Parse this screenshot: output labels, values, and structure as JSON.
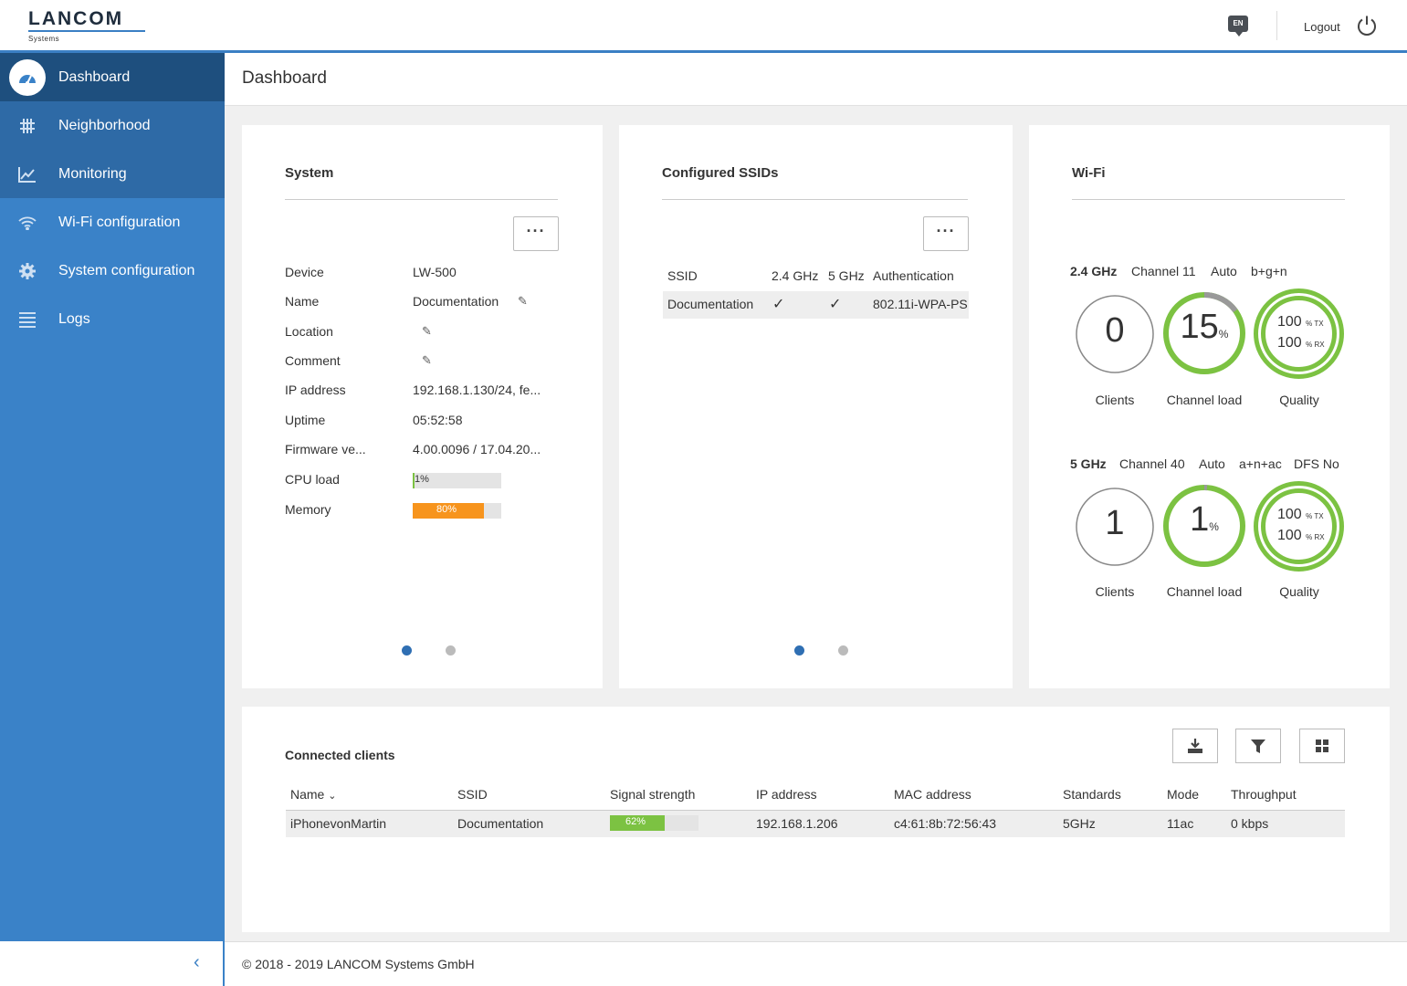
{
  "brand": {
    "name": "LANCOM",
    "sub": "Systems"
  },
  "header": {
    "lang": "EN",
    "logout": "Logout"
  },
  "nav": [
    {
      "label": "Dashboard",
      "icon": "speedometer-icon"
    },
    {
      "label": "Neighborhood",
      "icon": "grid-hash-icon"
    },
    {
      "label": "Monitoring",
      "icon": "line-chart-icon"
    },
    {
      "label": "Wi-Fi configuration",
      "icon": "wifi-icon"
    },
    {
      "label": "System configuration",
      "icon": "gear-icon"
    },
    {
      "label": "Logs",
      "icon": "list-icon"
    }
  ],
  "page": {
    "title": "Dashboard"
  },
  "system": {
    "title": "System",
    "rows": [
      {
        "label": "Device",
        "value": "LW-500"
      },
      {
        "label": "Name",
        "value": "Documentation"
      },
      {
        "label": "Location",
        "value": ""
      },
      {
        "label": "Comment",
        "value": ""
      },
      {
        "label": "IP address",
        "value": "192.168.1.130/24, fe..."
      },
      {
        "label": "Uptime",
        "value": "05:52:58"
      },
      {
        "label": "Firmware ve...",
        "value": "4.00.0096 / 17.04.20..."
      },
      {
        "label": "CPU load",
        "value": ""
      },
      {
        "label": "Memory",
        "value": ""
      }
    ],
    "cpu": {
      "percent": 1,
      "label": "1%"
    },
    "memory": {
      "percent": 80,
      "label": "80%"
    }
  },
  "ssids": {
    "title": "Configured SSIDs",
    "headers": [
      "SSID",
      "2.4 GHz",
      "5 GHz",
      "Authentication"
    ],
    "row": {
      "ssid": "Documentation",
      "g24": "✓",
      "g5": "✓",
      "auth": "802.11i-WPA-PS"
    }
  },
  "wifi": {
    "title": "Wi-Fi",
    "bands": [
      {
        "band": "2.4 GHz",
        "channel": "Channel 11",
        "mode": "Auto",
        "standard": "b+g+n",
        "dfs": "",
        "clients": "0",
        "load": 15,
        "load_label": "15",
        "quality_tx": "100",
        "quality_rx": "100"
      },
      {
        "band": "5 GHz",
        "channel": "Channel 40",
        "mode": "Auto",
        "standard": "a+n+ac",
        "dfs": "DFS No",
        "clients": "1",
        "load": 1,
        "load_label": "1",
        "quality_tx": "100",
        "quality_rx": "100"
      }
    ],
    "captions": {
      "clients": "Clients",
      "load": "Channel load",
      "quality": "Quality"
    },
    "pct": "%",
    "tx": "% TX",
    "rx": "% RX"
  },
  "clients": {
    "title": "Connected clients",
    "headers": [
      "Name",
      "SSID",
      "Signal strength",
      "IP address",
      "MAC address",
      "Standards",
      "Mode",
      "Throughput"
    ],
    "row": {
      "name": "iPhonevonMartin",
      "ssid": "Documentation",
      "signal": 62,
      "signal_label": "62%",
      "ip": "192.168.1.206",
      "mac": "c4:61:8b:72:56:43",
      "standards": "5GHz",
      "mode": "11ac",
      "throughput": "0 kbps"
    }
  },
  "footer": {
    "copyright": "© 2018 - 2019 LANCOM Systems GmbH"
  },
  "colors": {
    "accent": "#3a82c8",
    "green": "#7cc242",
    "orange": "#f7941d"
  }
}
